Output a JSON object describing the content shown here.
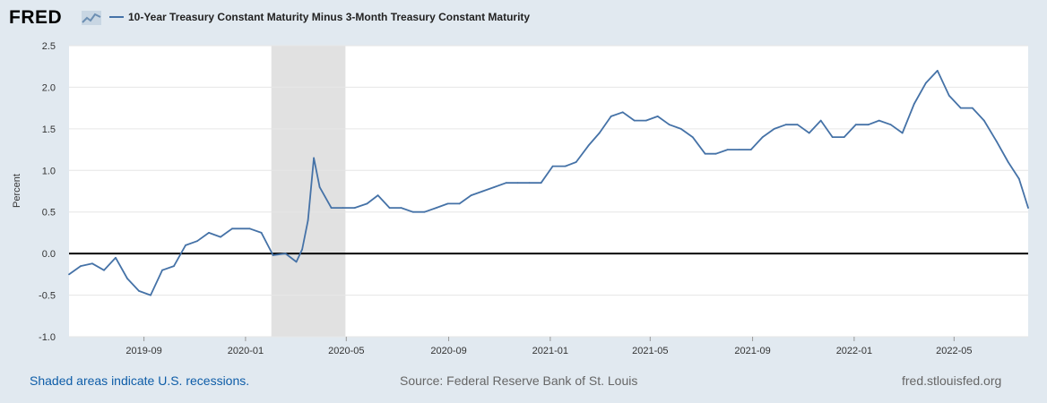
{
  "header": {
    "logo_text": "FRED",
    "logo_icon": "line-chart-icon",
    "legend_label": "10-Year Treasury Constant Maturity Minus 3-Month Treasury Constant Maturity"
  },
  "footer": {
    "recession_note": "Shaded areas indicate U.S. recessions.",
    "source": "Source: Federal Reserve Bank of St. Louis",
    "site": "fred.stlouisfed.org"
  },
  "colors": {
    "page_bg": "#e1e9f0",
    "plot_bg": "#ffffff",
    "series": "#4572a7",
    "recession": "#e1e1e1",
    "zero_line": "#000000",
    "grid": "#e6e6e6",
    "link": "#0e5da8"
  },
  "chart_data": {
    "type": "line",
    "title": "",
    "xlabel": "",
    "ylabel": "Percent",
    "ylim": [
      -1.0,
      2.5
    ],
    "xlim": [
      "2019-06-03",
      "2022-07-29"
    ],
    "yticks": [
      -1.0,
      -0.5,
      0.0,
      0.5,
      1.0,
      1.5,
      2.0,
      2.5
    ],
    "ytick_labels": [
      "-1.0",
      "-0.5",
      "0.0",
      "0.5",
      "1.0",
      "1.5",
      "2.0",
      "2.5"
    ],
    "xticks": [
      "2019-09-01",
      "2020-01-01",
      "2020-05-01",
      "2020-09-01",
      "2021-01-01",
      "2021-05-01",
      "2021-09-01",
      "2022-01-01",
      "2022-05-01"
    ],
    "xtick_labels": [
      "2019-09",
      "2020-01",
      "2020-05",
      "2020-09",
      "2021-01",
      "2021-05",
      "2021-09",
      "2022-01",
      "2022-05"
    ],
    "grid": true,
    "legend": "top-left",
    "recessions": [
      {
        "start": "2020-02-01",
        "end": "2020-04-30"
      }
    ],
    "series": [
      {
        "name": "10-Year Treasury Constant Maturity Minus 3-Month Treasury Constant Maturity",
        "x": [
          "2019-06-03",
          "2019-06-17",
          "2019-07-01",
          "2019-07-15",
          "2019-07-29",
          "2019-08-12",
          "2019-08-26",
          "2019-09-09",
          "2019-09-23",
          "2019-10-07",
          "2019-10-21",
          "2019-11-04",
          "2019-11-18",
          "2019-12-02",
          "2019-12-16",
          "2020-01-06",
          "2020-01-20",
          "2020-02-03",
          "2020-02-18",
          "2020-03-02",
          "2020-03-09",
          "2020-03-16",
          "2020-03-23",
          "2020-03-30",
          "2020-04-13",
          "2020-04-27",
          "2020-05-11",
          "2020-05-26",
          "2020-06-08",
          "2020-06-22",
          "2020-07-06",
          "2020-07-20",
          "2020-08-03",
          "2020-08-17",
          "2020-08-31",
          "2020-09-14",
          "2020-09-28",
          "2020-10-12",
          "2020-10-26",
          "2020-11-09",
          "2020-11-23",
          "2020-12-07",
          "2020-12-21",
          "2021-01-04",
          "2021-01-19",
          "2021-02-01",
          "2021-02-16",
          "2021-03-01",
          "2021-03-15",
          "2021-03-29",
          "2021-04-12",
          "2021-04-26",
          "2021-05-10",
          "2021-05-24",
          "2021-06-07",
          "2021-06-21",
          "2021-07-06",
          "2021-07-19",
          "2021-08-02",
          "2021-08-16",
          "2021-08-30",
          "2021-09-13",
          "2021-09-27",
          "2021-10-11",
          "2021-10-25",
          "2021-11-08",
          "2021-11-22",
          "2021-12-06",
          "2021-12-20",
          "2022-01-03",
          "2022-01-18",
          "2022-01-31",
          "2022-02-14",
          "2022-02-28",
          "2022-03-14",
          "2022-03-28",
          "2022-04-11",
          "2022-04-25",
          "2022-05-09",
          "2022-05-23",
          "2022-06-06",
          "2022-06-21",
          "2022-07-05",
          "2022-07-18",
          "2022-07-29"
        ],
        "y": [
          -0.25,
          -0.15,
          -0.12,
          -0.2,
          -0.05,
          -0.3,
          -0.45,
          -0.5,
          -0.2,
          -0.15,
          0.1,
          0.15,
          0.25,
          0.2,
          0.3,
          0.3,
          0.25,
          -0.02,
          0.0,
          -0.1,
          0.05,
          0.4,
          1.15,
          0.8,
          0.55,
          0.55,
          0.55,
          0.6,
          0.7,
          0.55,
          0.55,
          0.5,
          0.5,
          0.55,
          0.6,
          0.6,
          0.7,
          0.75,
          0.8,
          0.85,
          0.85,
          0.85,
          0.85,
          1.05,
          1.05,
          1.1,
          1.3,
          1.45,
          1.65,
          1.7,
          1.6,
          1.6,
          1.65,
          1.55,
          1.5,
          1.4,
          1.2,
          1.2,
          1.25,
          1.25,
          1.25,
          1.4,
          1.5,
          1.55,
          1.55,
          1.45,
          1.6,
          1.4,
          1.4,
          1.55,
          1.55,
          1.6,
          1.55,
          1.45,
          1.8,
          2.05,
          2.2,
          1.9,
          1.75,
          1.75,
          1.6,
          1.35,
          1.1,
          0.9,
          0.55
        ]
      }
    ]
  }
}
